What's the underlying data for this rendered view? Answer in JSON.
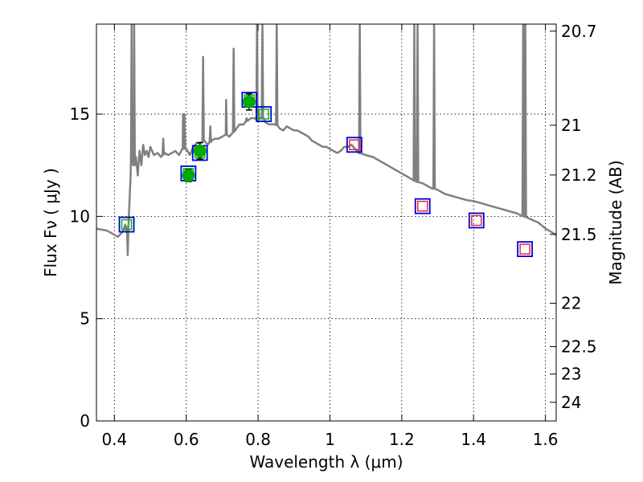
{
  "chart_data": {
    "type": "scatter",
    "xlabel": "Wavelength  λ (μm)",
    "ylabel": "Flux  Fν  ( μJy )",
    "y2label": "Magnitude (AB)",
    "xlim": [
      0.35,
      1.63
    ],
    "ylim": [
      0,
      19.4
    ],
    "grid": true,
    "x_ticks": [
      0.4,
      0.6,
      0.8,
      1.0,
      1.2,
      1.4,
      1.6
    ],
    "x_tick_labels": [
      "0.4",
      "0.6",
      "0.8",
      "1",
      "1.2",
      "1.4",
      "1.6"
    ],
    "y_ticks": [
      0,
      5,
      10,
      15
    ],
    "y_tick_labels": [
      "0",
      "5",
      "10",
      "15"
    ],
    "y2_ticks": [
      {
        "mag": 20.7,
        "label": "20.7"
      },
      {
        "mag": 21.0,
        "label": "21"
      },
      {
        "mag": 21.2,
        "label": "21.2"
      },
      {
        "mag": 21.5,
        "label": "21.5"
      },
      {
        "mag": 22.0,
        "label": "22"
      },
      {
        "mag": 22.5,
        "label": "22.5"
      },
      {
        "mag": 23.0,
        "label": "23"
      },
      {
        "mag": 24.0,
        "label": "24"
      }
    ],
    "colors": {
      "template": "#808080",
      "observed": "#00aa00",
      "model_box": "#0000dd",
      "model_inner_optical": "#00bb00",
      "model_inner_ir": "#ee2244"
    },
    "series": [
      {
        "style": "line",
        "color": "#808080",
        "points": [
          [
            0.35,
            9.4
          ],
          [
            0.38,
            9.3
          ],
          [
            0.41,
            9.0
          ],
          [
            0.425,
            9.3
          ],
          [
            0.43,
            9.6
          ],
          [
            0.435,
            9.2
          ],
          [
            0.44,
            9.9
          ],
          [
            0.445,
            12.0
          ],
          [
            0.45,
            13.0
          ],
          [
            0.455,
            12.5
          ],
          [
            0.46,
            12.9
          ],
          [
            0.465,
            12.0
          ],
          [
            0.47,
            13.2
          ],
          [
            0.475,
            12.5
          ],
          [
            0.48,
            13.5
          ],
          [
            0.485,
            13.0
          ],
          [
            0.49,
            13.2
          ],
          [
            0.495,
            12.9
          ],
          [
            0.5,
            13.4
          ],
          [
            0.51,
            13.0
          ],
          [
            0.52,
            13.1
          ],
          [
            0.53,
            12.9
          ],
          [
            0.54,
            13.1
          ],
          [
            0.55,
            13.0
          ],
          [
            0.56,
            13.1
          ],
          [
            0.57,
            13.2
          ],
          [
            0.58,
            13.0
          ],
          [
            0.59,
            13.3
          ],
          [
            0.6,
            13.3
          ],
          [
            0.61,
            13.0
          ],
          [
            0.62,
            13.4
          ],
          [
            0.63,
            13.6
          ],
          [
            0.64,
            13.6
          ],
          [
            0.65,
            13.7
          ],
          [
            0.66,
            13.5
          ],
          [
            0.67,
            13.7
          ],
          [
            0.68,
            13.8
          ],
          [
            0.69,
            13.8
          ],
          [
            0.7,
            13.9
          ],
          [
            0.71,
            14.0
          ],
          [
            0.72,
            13.9
          ],
          [
            0.73,
            14.1
          ],
          [
            0.74,
            14.3
          ],
          [
            0.75,
            14.5
          ],
          [
            0.76,
            14.5
          ],
          [
            0.77,
            14.7
          ],
          [
            0.78,
            14.8
          ],
          [
            0.79,
            14.8
          ],
          [
            0.8,
            14.7
          ],
          [
            0.81,
            14.9
          ],
          [
            0.82,
            14.6
          ],
          [
            0.83,
            14.5
          ],
          [
            0.84,
            14.5
          ],
          [
            0.85,
            14.5
          ],
          [
            0.86,
            14.3
          ],
          [
            0.87,
            14.2
          ],
          [
            0.88,
            14.4
          ],
          [
            0.89,
            14.3
          ],
          [
            0.9,
            14.2
          ],
          [
            0.91,
            14.2
          ],
          [
            0.92,
            14.1
          ],
          [
            0.93,
            14.0
          ],
          [
            0.94,
            13.9
          ],
          [
            0.95,
            13.7
          ],
          [
            0.96,
            13.6
          ],
          [
            0.97,
            13.5
          ],
          [
            0.98,
            13.4
          ],
          [
            0.99,
            13.4
          ],
          [
            1.0,
            13.3
          ],
          [
            1.01,
            13.2
          ],
          [
            1.02,
            13.1
          ],
          [
            1.03,
            13.2
          ],
          [
            1.04,
            13.4
          ],
          [
            1.05,
            13.4
          ],
          [
            1.06,
            13.5
          ],
          [
            1.07,
            13.3
          ],
          [
            1.08,
            13.1
          ],
          [
            1.1,
            13.0
          ],
          [
            1.12,
            12.9
          ],
          [
            1.14,
            12.7
          ],
          [
            1.16,
            12.5
          ],
          [
            1.18,
            12.3
          ],
          [
            1.2,
            12.1
          ],
          [
            1.22,
            11.9
          ],
          [
            1.24,
            11.7
          ],
          [
            1.26,
            11.6
          ],
          [
            1.28,
            11.4
          ],
          [
            1.3,
            11.3
          ],
          [
            1.32,
            11.1
          ],
          [
            1.34,
            11.0
          ],
          [
            1.36,
            10.9
          ],
          [
            1.38,
            10.8
          ],
          [
            1.4,
            10.75
          ],
          [
            1.42,
            10.65
          ],
          [
            1.44,
            10.55
          ],
          [
            1.46,
            10.45
          ],
          [
            1.48,
            10.35
          ],
          [
            1.5,
            10.25
          ],
          [
            1.52,
            10.15
          ],
          [
            1.54,
            10.0
          ],
          [
            1.56,
            9.85
          ],
          [
            1.58,
            9.7
          ],
          [
            1.6,
            9.4
          ],
          [
            1.63,
            9.1
          ]
        ],
        "spikes": [
          {
            "x": 0.437,
            "top": 8.1
          },
          {
            "x": 0.448,
            "top": 19.5
          },
          {
            "x": 0.455,
            "top": 19.5
          },
          {
            "x": 0.536,
            "top": 13.8
          },
          {
            "x": 0.591,
            "top": 15.0
          },
          {
            "x": 0.595,
            "top": 15.0
          },
          {
            "x": 0.647,
            "top": 17.8
          },
          {
            "x": 0.667,
            "top": 14.4
          },
          {
            "x": 0.684,
            "top": 13.8
          },
          {
            "x": 0.711,
            "top": 15.7
          },
          {
            "x": 0.732,
            "top": 18.2
          },
          {
            "x": 0.749,
            "top": 14.5
          },
          {
            "x": 0.768,
            "top": 14.8
          },
          {
            "x": 0.797,
            "top": 19.5
          },
          {
            "x": 0.812,
            "top": 19.5
          },
          {
            "x": 0.852,
            "top": 19.5
          },
          {
            "x": 1.083,
            "top": 19.5
          },
          {
            "x": 1.235,
            "top": 19.5
          },
          {
            "x": 1.244,
            "top": 19.5
          },
          {
            "x": 1.29,
            "top": 19.5
          },
          {
            "x": 1.538,
            "top": 19.5
          },
          {
            "x": 1.544,
            "top": 19.5
          }
        ]
      },
      {
        "style": "errorbar",
        "color": "#00aa00",
        "points": [
          {
            "x": 0.606,
            "y": 12.0,
            "err": 0.3
          },
          {
            "x": 0.638,
            "y": 13.2,
            "err": 0.4
          },
          {
            "x": 0.775,
            "y": 15.6,
            "err": 0.4
          }
        ]
      },
      {
        "style": "model-squares",
        "points": [
          {
            "x": 0.434,
            "y": 9.6,
            "inner": "optical"
          },
          {
            "x": 0.606,
            "y": 12.1,
            "inner": "optical"
          },
          {
            "x": 0.638,
            "y": 13.1,
            "inner": "optical"
          },
          {
            "x": 0.776,
            "y": 15.7,
            "inner": "optical"
          },
          {
            "x": 0.816,
            "y": 15.0,
            "inner": "optical"
          },
          {
            "x": 1.068,
            "y": 13.5,
            "inner": "ir"
          },
          {
            "x": 1.258,
            "y": 10.5,
            "inner": "ir"
          },
          {
            "x": 1.408,
            "y": 9.8,
            "inner": "ir"
          },
          {
            "x": 1.543,
            "y": 8.4,
            "inner": "ir"
          }
        ]
      }
    ]
  }
}
